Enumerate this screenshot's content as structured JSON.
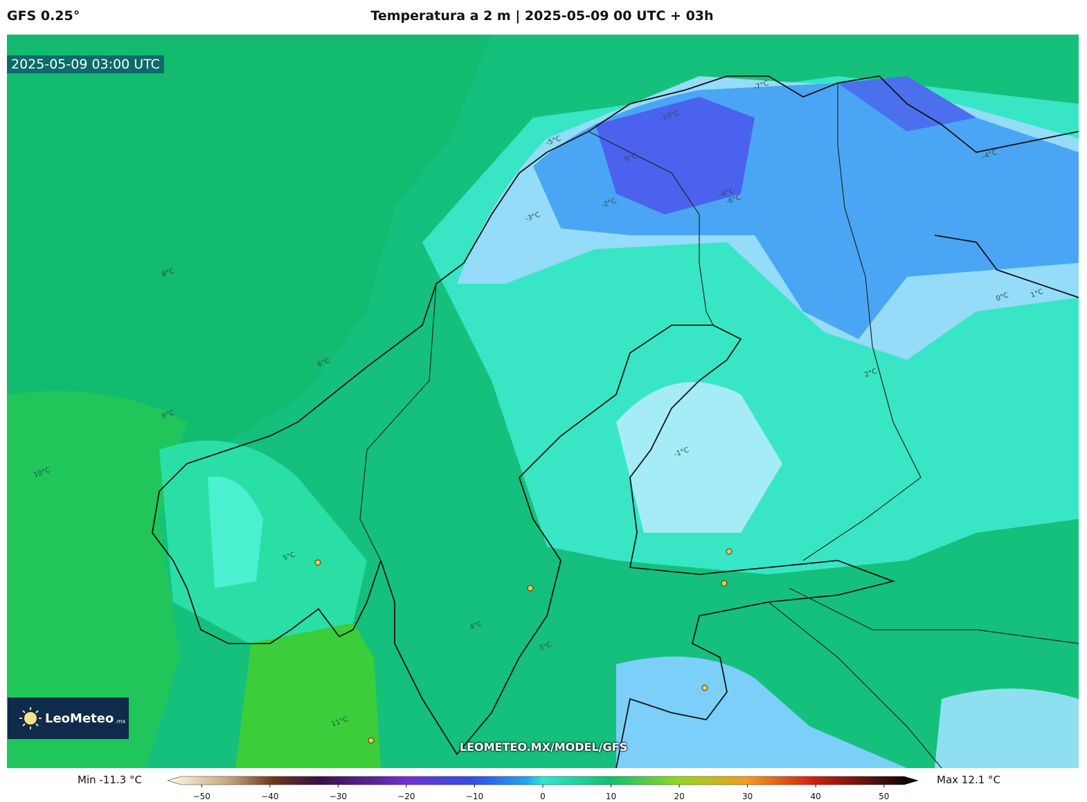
{
  "header": {
    "model": "GFS 0.25°",
    "title": "Temperatura a 2 m | 2025-05-09 00 UTC + 03h"
  },
  "map": {
    "valid_time": "2025-05-09 03:00 UTC",
    "watermark": "LEOMETEO.MX/MODEL/GFS",
    "logo": {
      "name": "LeoMeteo",
      "suffix": ".mx"
    },
    "contour_labels": [
      "-10°C",
      "-9°C",
      "-8°C",
      "-7°C",
      "-6°C",
      "-5°C",
      "-4°C",
      "-3°C",
      "-2°C",
      "-1°C",
      "0°C",
      "1°C",
      "2°C",
      "3°C",
      "4°C",
      "5°C",
      "6°C",
      "8°C",
      "9°C",
      "10°C",
      "11°C"
    ]
  },
  "colorbar": {
    "min_label": "Min -11.3 °C",
    "max_label": "Max 12.1 °C",
    "lim": [
      -55,
      55
    ],
    "ticks": [
      {
        "value": -50,
        "label": "−50"
      },
      {
        "value": -40,
        "label": "−40"
      },
      {
        "value": -30,
        "label": "−30"
      },
      {
        "value": -20,
        "label": "−20"
      },
      {
        "value": -10,
        "label": "−10"
      },
      0,
      10,
      20,
      30,
      40,
      50
    ]
  }
}
